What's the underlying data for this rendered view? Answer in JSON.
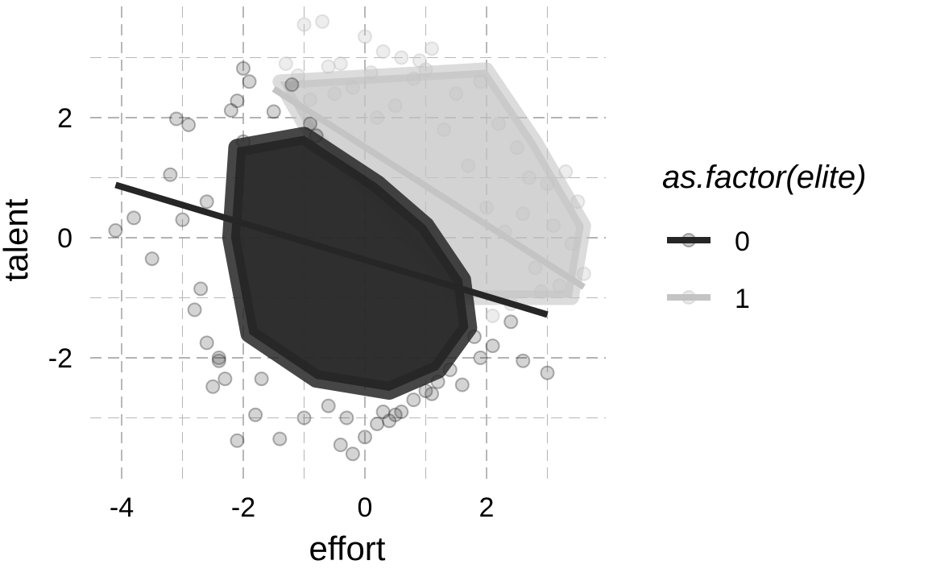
{
  "chart_data": {
    "type": "scatter",
    "xlabel": "effort",
    "ylabel": "talent",
    "xlim": [
      -4.2,
      3.9
    ],
    "ylim": [
      -3.9,
      3.5
    ],
    "x_ticks": [
      -4,
      -2,
      0,
      2
    ],
    "y_ticks": [
      -2,
      0,
      2
    ],
    "x_tick_labels": [
      "-4",
      "-2",
      "0",
      "2"
    ],
    "y_tick_labels": [
      "-2",
      "0",
      "2"
    ],
    "grid": true,
    "legend": {
      "title": "as.factor(elite)",
      "position": "right",
      "entries": [
        "0",
        "1"
      ]
    },
    "series": [
      {
        "name": "0",
        "color": "#262626",
        "point_alpha": 0.2,
        "fit_line": {
          "x": [
            -4.1,
            3.0
          ],
          "y": [
            0.88,
            -1.28
          ]
        },
        "points": {
          "x": [
            -4.1,
            -3.8,
            -3.5,
            -3.2,
            -3.1,
            -2.9,
            -3.0,
            -2.7,
            -2.6,
            -2.5,
            -2.3,
            -2.4,
            -2.8,
            -2.2,
            -2.1,
            -2.0,
            -1.9,
            -2.1,
            -2.4,
            -2.6,
            -1.4,
            -1.8,
            -1.0,
            -0.6,
            -0.4,
            -0.2,
            0.0,
            0.2,
            0.4,
            0.6,
            0.8,
            1.0,
            1.2,
            1.4,
            1.6,
            1.9,
            2.4,
            2.6,
            3.0,
            -2.0,
            -1.5,
            -0.8,
            0.3,
            1.1,
            1.8,
            2.1,
            -1.7,
            -1.2,
            -0.9,
            -0.3,
            0.5
          ],
          "y": [
            0.12,
            0.33,
            -0.35,
            1.05,
            1.98,
            1.88,
            0.3,
            -0.85,
            -1.75,
            -2.48,
            -2.35,
            -2.0,
            -1.2,
            2.12,
            2.28,
            2.82,
            2.6,
            -3.38,
            -2.05,
            0.6,
            -3.35,
            -2.95,
            -3.0,
            -2.8,
            -3.45,
            -3.6,
            -3.32,
            -3.1,
            -3.05,
            -2.9,
            -2.7,
            -2.55,
            -2.4,
            -2.2,
            -2.45,
            -2.0,
            -1.4,
            -2.05,
            -2.25,
            1.6,
            2.1,
            1.7,
            -2.9,
            -2.6,
            -1.65,
            -1.8,
            -2.35,
            2.55,
            1.9,
            -3.0,
            -2.95
          ]
        }
      },
      {
        "name": "1",
        "color": "#c4c4c4",
        "point_alpha": 0.3,
        "fit_line": {
          "x": [
            -1.5,
            3.6
          ],
          "y": [
            2.48,
            -0.82
          ]
        },
        "points": {
          "x": [
            -1.3,
            -1.0,
            -0.7,
            -0.4,
            0.0,
            0.3,
            0.6,
            0.9,
            1.1,
            -1.1,
            -0.6,
            0.1,
            0.8,
            1.5,
            1.9,
            2.2,
            2.5,
            2.7,
            3.0,
            3.3,
            3.5,
            3.4,
            3.1,
            2.6,
            2.3,
            2.0,
            1.7,
            3.2,
            2.8,
            2.4,
            1.3,
            0.5,
            -0.2,
            -0.9,
            2.1,
            2.9,
            3.6,
            1.0,
            0.2,
            -0.5
          ],
          "y": [
            2.9,
            3.55,
            3.6,
            2.9,
            3.35,
            3.1,
            3.0,
            2.95,
            3.15,
            2.7,
            2.85,
            2.75,
            2.65,
            2.4,
            2.6,
            1.9,
            1.5,
            1.0,
            0.9,
            1.1,
            0.6,
            -0.1,
            0.2,
            0.4,
            0.1,
            0.5,
            1.2,
            -0.8,
            -0.5,
            -1.1,
            1.8,
            2.2,
            2.5,
            2.3,
            -1.3,
            -0.9,
            -0.6,
            2.8,
            2.0,
            2.4
          ]
        },
        "dense_region": {
          "x": [
            -1.4,
            2.0,
            2.8,
            3.6,
            3.4,
            1.5,
            0.2,
            -1.0
          ],
          "y": [
            2.6,
            2.8,
            1.6,
            0.2,
            -1.0,
            -1.0,
            0.6,
            1.9
          ]
        }
      },
      {
        "name": "0",
        "color": "#262626",
        "dense_region": {
          "x": [
            -2.1,
            -1.0,
            0.2,
            1.0,
            1.6,
            1.7,
            1.2,
            0.4,
            -0.8,
            -1.9,
            -2.2
          ],
          "y": [
            1.5,
            1.7,
            0.9,
            0.2,
            -0.7,
            -1.5,
            -2.2,
            -2.55,
            -2.35,
            -1.6,
            0.0
          ]
        }
      }
    ]
  }
}
